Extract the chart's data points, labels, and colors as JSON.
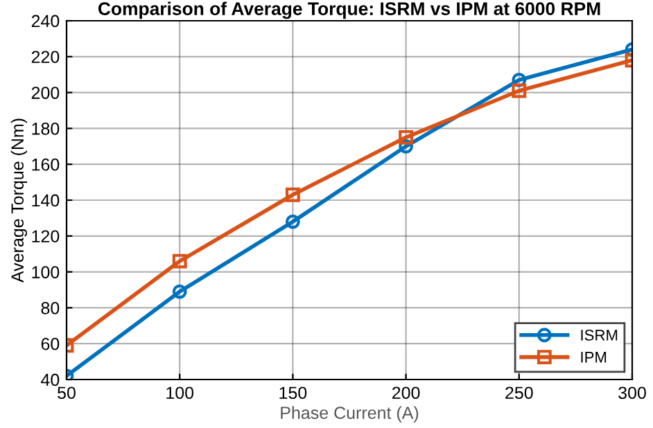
{
  "chart_data": {
    "type": "line",
    "title": "Comparison of Average Torque: ISRM vs IPM at 6000 RPM",
    "xlabel": "Phase Current (A)",
    "ylabel": "Average Torque (Nm)",
    "x": [
      50,
      100,
      150,
      200,
      250,
      300
    ],
    "series": [
      {
        "name": "ISRM",
        "color": "#0072bd",
        "marker": "circle",
        "values": [
          42,
          89,
          128,
          170,
          207,
          224
        ]
      },
      {
        "name": "IPM",
        "color": "#d95319",
        "marker": "square",
        "values": [
          59,
          106,
          143,
          175,
          201,
          218
        ]
      }
    ],
    "xlim": [
      50,
      300
    ],
    "xticks": [
      50,
      100,
      150,
      200,
      250,
      300
    ],
    "ylim": [
      40,
      240
    ],
    "yticks": [
      40,
      60,
      80,
      100,
      120,
      140,
      160,
      180,
      200,
      220,
      240
    ],
    "grid": true,
    "legend": "bottom right",
    "line_style": "solid"
  }
}
